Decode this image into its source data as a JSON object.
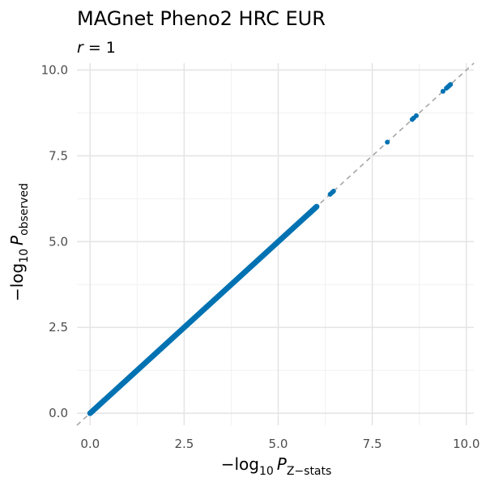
{
  "chart_data": {
    "type": "scatter",
    "title": "MAGnet Pheno2 HRC EUR",
    "subtitle": {
      "var": "r",
      "eq": " = 1"
    },
    "xlabel": {
      "prefix": "−log",
      "sub1": "10",
      "var": "P",
      "sub2": "Z−stats"
    },
    "ylabel": {
      "prefix": "−log",
      "sub1": "10",
      "var": "P",
      "sub2": "observed"
    },
    "xlim": [
      -0.35,
      10.2
    ],
    "ylim": [
      -0.35,
      10.2
    ],
    "xticks": [
      0,
      2.5,
      5,
      7.5,
      10
    ],
    "yticks": [
      0,
      2.5,
      5,
      7.5,
      10
    ],
    "xtick_labels": [
      "0.0",
      "2.5",
      "5.0",
      "7.5",
      "10.0"
    ],
    "ytick_labels": [
      "0.0",
      "2.5",
      "5.0",
      "7.5",
      "10.0"
    ],
    "grid": true,
    "reference_line": {
      "slope": 1,
      "intercept": 0,
      "style": "dashed",
      "color": "#a6a6a6"
    },
    "dense_segment": {
      "x_start": 0.0,
      "x_end": 6.02
    },
    "series": [
      {
        "color": "#0072b2",
        "x": [
          6.38,
          6.43,
          6.47,
          7.9,
          8.56,
          8.6,
          8.67,
          9.38,
          9.47,
          9.5,
          9.53,
          9.56,
          9.58
        ],
        "y": [
          6.38,
          6.43,
          6.47,
          7.9,
          8.56,
          8.6,
          8.67,
          9.38,
          9.47,
          9.5,
          9.53,
          9.56,
          9.58
        ]
      }
    ]
  }
}
